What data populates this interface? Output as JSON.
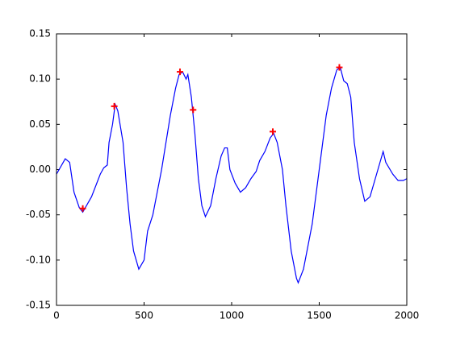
{
  "chart_data": {
    "type": "line",
    "x": [
      0,
      50,
      75,
      100,
      130,
      150,
      200,
      250,
      270,
      290,
      300,
      320,
      335,
      350,
      380,
      400,
      420,
      440,
      470,
      500,
      520,
      550,
      600,
      650,
      680,
      700,
      720,
      740,
      750,
      770,
      790,
      810,
      830,
      850,
      880,
      910,
      940,
      960,
      975,
      990,
      1020,
      1050,
      1080,
      1110,
      1140,
      1160,
      1190,
      1220,
      1240,
      1260,
      1290,
      1310,
      1340,
      1370,
      1380,
      1410,
      1430,
      1460,
      1500,
      1540,
      1570,
      1600,
      1620,
      1640,
      1660,
      1680,
      1700,
      1730,
      1760,
      1790,
      1820,
      1850,
      1865,
      1880,
      1920,
      1950,
      1980,
      2000
    ],
    "series": [
      {
        "color": "#0000ff",
        "values": [
          -0.005,
          0.012,
          0.008,
          -0.025,
          -0.042,
          -0.047,
          -0.03,
          -0.005,
          0.002,
          0.005,
          0.03,
          0.05,
          0.072,
          0.065,
          0.03,
          -0.02,
          -0.06,
          -0.09,
          -0.11,
          -0.1,
          -0.068,
          -0.05,
          0.0,
          0.06,
          0.09,
          0.105,
          0.108,
          0.1,
          0.105,
          0.08,
          0.04,
          -0.01,
          -0.04,
          -0.052,
          -0.04,
          -0.01,
          0.015,
          0.024,
          0.024,
          0.0,
          -0.015,
          -0.025,
          -0.02,
          -0.01,
          -0.002,
          0.01,
          0.02,
          0.035,
          0.04,
          0.03,
          0.0,
          -0.04,
          -0.09,
          -0.12,
          -0.125,
          -0.11,
          -0.09,
          -0.06,
          0.0,
          0.06,
          0.09,
          0.11,
          0.113,
          0.098,
          0.095,
          0.08,
          0.03,
          -0.01,
          -0.035,
          -0.03,
          -0.01,
          0.01,
          0.02,
          0.008,
          -0.005,
          -0.012,
          -0.012,
          -0.01
        ]
      }
    ],
    "markers": {
      "color": "#ff0000",
      "x": [
        150,
        330,
        705,
        780,
        1235,
        1615
      ],
      "values": [
        -0.043,
        0.07,
        0.108,
        0.066,
        0.042,
        0.113
      ]
    },
    "xlim": [
      0,
      2000
    ],
    "ylim": [
      -0.15,
      0.15
    ],
    "xticks": [
      0,
      500,
      1000,
      1500,
      2000
    ],
    "yticks": [
      -0.15,
      {
        "value": -0.1,
        "label": "-0.10"
      },
      -0.05,
      {
        "value": 0,
        "label": "0.00"
      },
      0.05,
      {
        "value": 0.1,
        "label": "0.10"
      },
      0.15
    ],
    "grid": false
  }
}
